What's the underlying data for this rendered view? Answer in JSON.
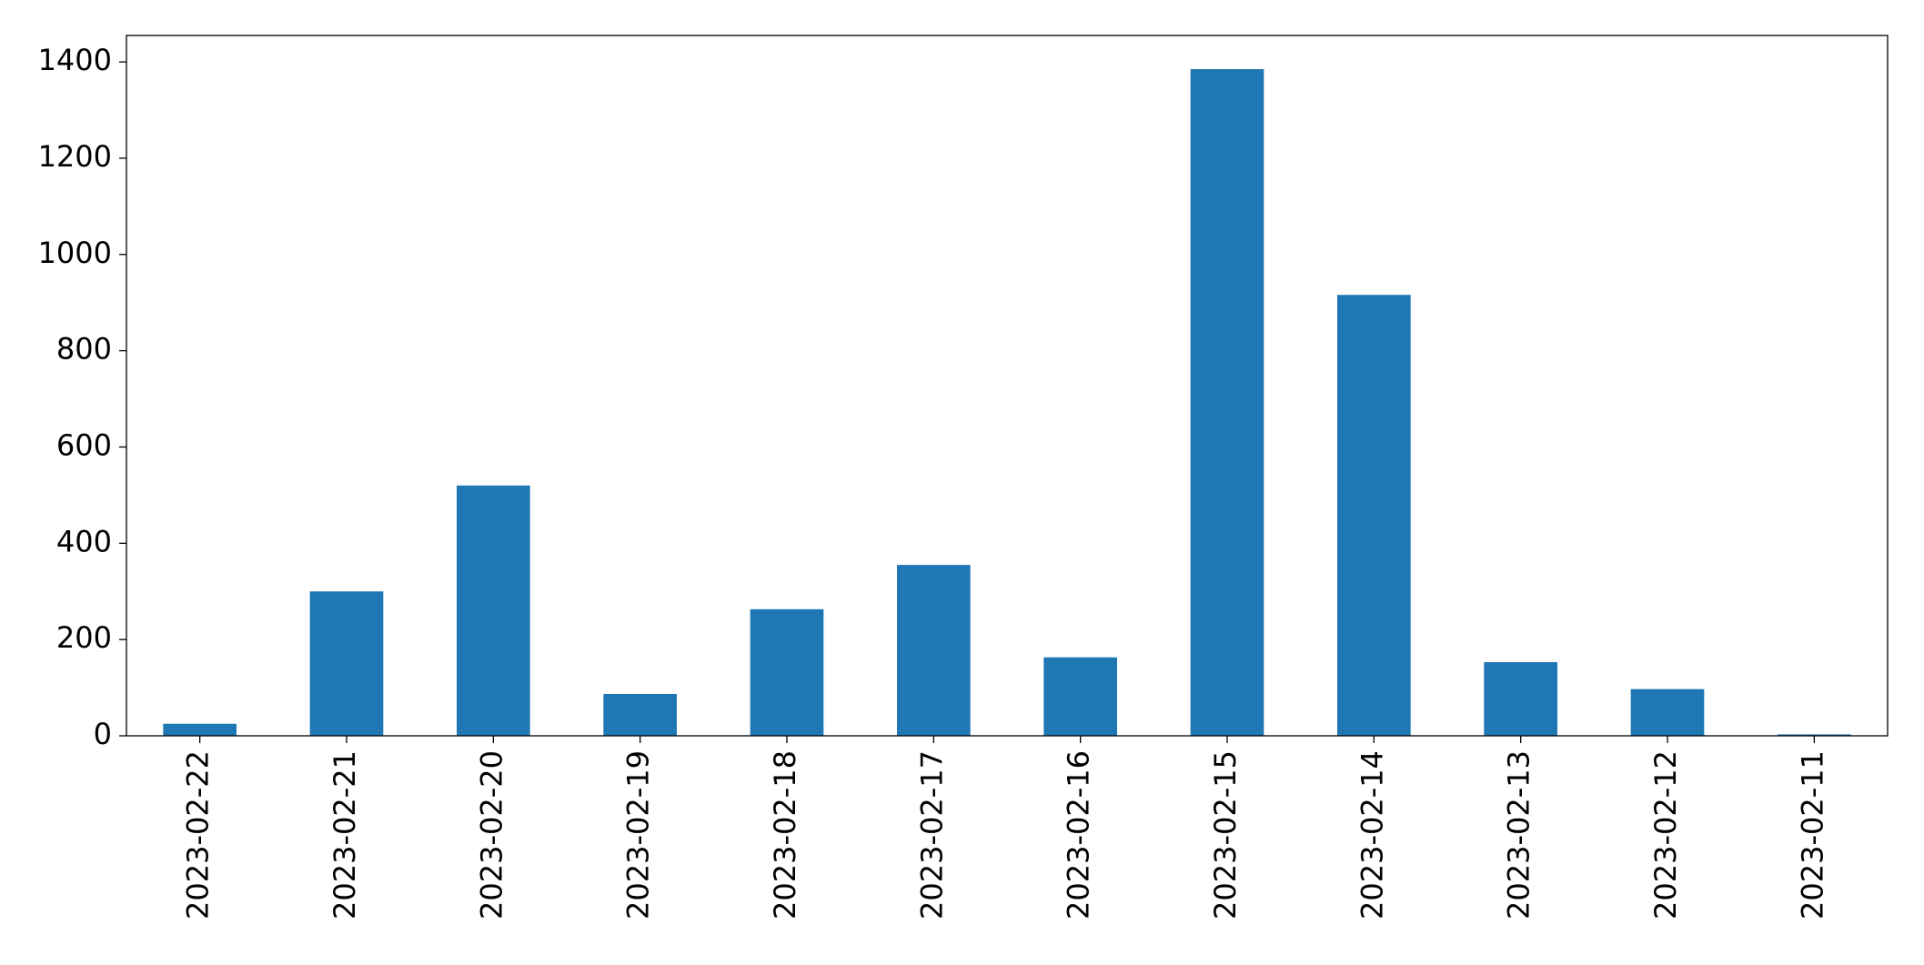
{
  "chart_data": {
    "type": "bar",
    "categories": [
      "2023-02-22",
      "2023-02-21",
      "2023-02-20",
      "2023-02-19",
      "2023-02-18",
      "2023-02-17",
      "2023-02-16",
      "2023-02-15",
      "2023-02-14",
      "2023-02-13",
      "2023-02-12",
      "2023-02-11"
    ],
    "values": [
      25,
      300,
      520,
      87,
      263,
      355,
      163,
      1385,
      916,
      153,
      97,
      3
    ],
    "color": "#1f77b4",
    "ylim": [
      0,
      1455
    ],
    "yticks": [
      0,
      200,
      400,
      600,
      800,
      1000,
      1200,
      1400
    ],
    "grid": false
  }
}
